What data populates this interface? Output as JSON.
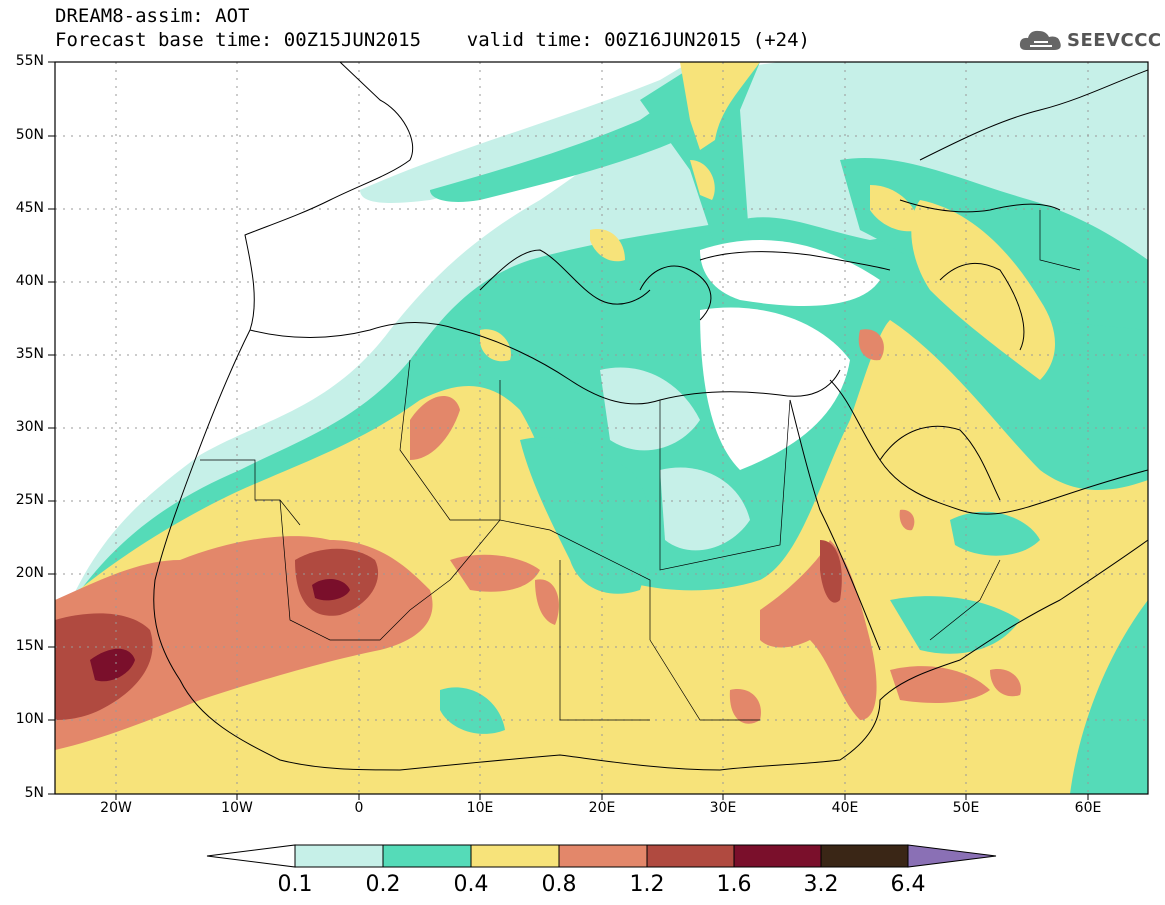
{
  "header": {
    "title_line1": "DREAM8-assim: AOT",
    "title_line2": "Forecast base time: 00Z15JUN2015    valid time: 00Z16JUN2015 (+24)",
    "brand": "SEEVCCC",
    "brand_icon": "cloud-icon"
  },
  "map": {
    "lat_labels": [
      "55N",
      "50N",
      "45N",
      "40N",
      "35N",
      "30N",
      "25N",
      "20N",
      "15N",
      "10N",
      "5N"
    ],
    "lon_labels": [
      "20W",
      "10W",
      "0",
      "10E",
      "20E",
      "30E",
      "40E",
      "50E",
      "60E"
    ]
  },
  "colorbar": {
    "labels": [
      "0.1",
      "0.2",
      "0.4",
      "0.8",
      "1.2",
      "1.6",
      "3.2",
      "6.4"
    ],
    "colors": [
      "#ffffff",
      "#c6f0e8",
      "#55dbb8",
      "#f7e37a",
      "#e3876a",
      "#b04a40",
      "#7a0f2b",
      "#3a2616",
      "#8a70b5"
    ]
  }
}
